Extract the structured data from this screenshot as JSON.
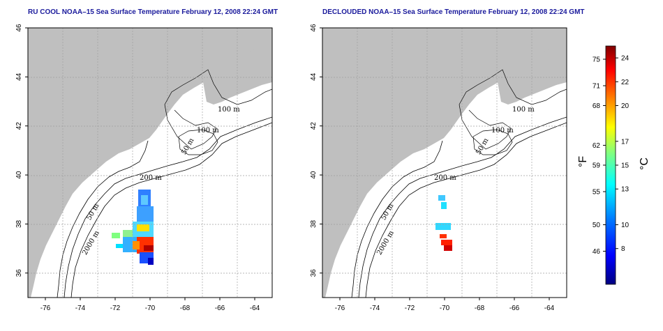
{
  "panels": [
    {
      "id": "left",
      "title": "RU COOL NOAA–15 Sea Surface Temperature February 12, 2008 22:24 GMT",
      "contour_labels": [
        "100 m",
        "100 m",
        "50 m",
        "200 m",
        "50 m",
        "2000 m"
      ]
    },
    {
      "id": "right",
      "title": "DECLOUDED NOAA–15 Sea Surface Temperature February 12, 2008 22:24 GMT",
      "contour_labels": [
        "100 m",
        "100 m",
        "50 m",
        "200 m",
        "50 m",
        "2000 m"
      ]
    }
  ],
  "axes": {
    "x_ticks": [
      "-76",
      "-74",
      "-72",
      "-70",
      "-68",
      "-66",
      "-64"
    ],
    "y_ticks": [
      "36",
      "38",
      "40",
      "42",
      "44",
      "46"
    ],
    "lon_range": [
      -77,
      -63
    ],
    "lat_range": [
      35,
      46
    ]
  },
  "colorbar": {
    "fahrenheit_label": "°F",
    "celsius_label": "°C",
    "fahrenheit_ticks": [
      "75",
      "71",
      "68",
      "62",
      "59",
      "55",
      "50",
      "46"
    ],
    "celsius_ticks": [
      "24",
      "22",
      "20",
      "17",
      "15",
      "13",
      "10",
      "8"
    ],
    "range_c": [
      5,
      25
    ],
    "colors": [
      "#000080",
      "#0000ff",
      "#0080ff",
      "#00ffff",
      "#80ff80",
      "#ffff00",
      "#ff8000",
      "#ff0000",
      "#800000"
    ]
  },
  "colors": {
    "land": "#bfbfbf",
    "ocean": "#ffffff",
    "title": "#1a1a9c",
    "grid": "#a0a0a0"
  }
}
